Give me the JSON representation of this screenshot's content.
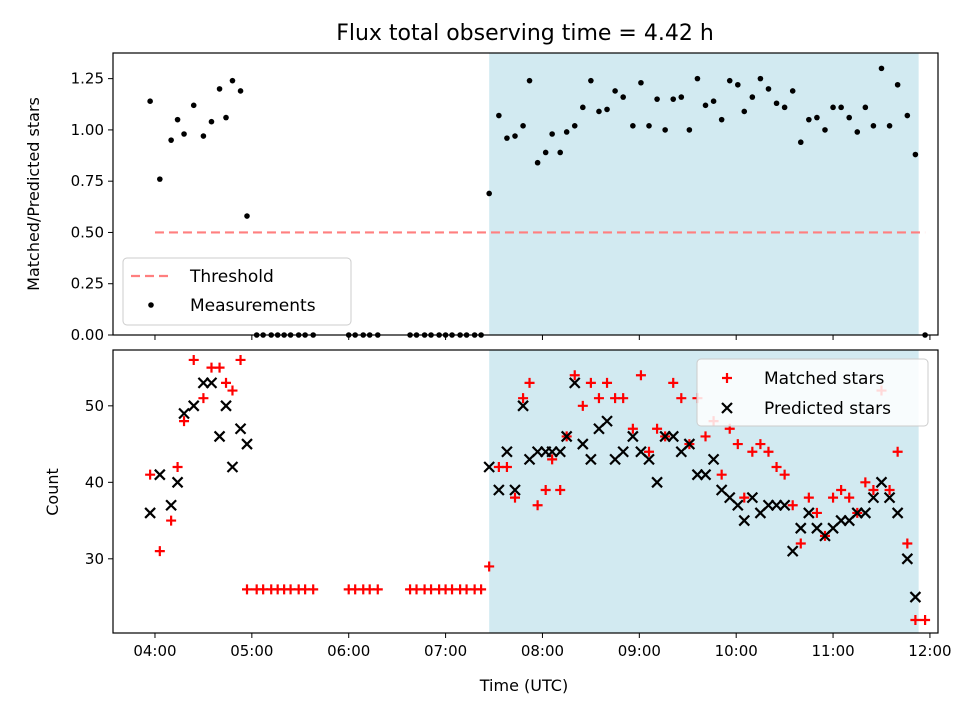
{
  "chart_data": [
    {
      "type": "scatter",
      "title": "Flux total observing time = 4.42 h",
      "xlabel": "",
      "ylabel": "Matched/Predicted stars",
      "ylim": [
        0,
        1.375
      ],
      "yticks": [
        "0.00",
        "0.25",
        "0.50",
        "0.75",
        "1.00",
        "1.25"
      ],
      "yticks_values": [
        0,
        0.25,
        0.5,
        0.75,
        1.0,
        1.25
      ],
      "shaded_span": [
        "07:27",
        "11:53"
      ],
      "threshold": {
        "name": "Threshold",
        "value": 0.5,
        "x_start": "04:00",
        "x_end": "11:57",
        "color": "#ff7f7f"
      },
      "legend": {
        "position": "lower-left",
        "entries": [
          "Threshold",
          "Measurements"
        ]
      },
      "series": [
        {
          "name": "Measurements",
          "color": "#000000",
          "marker": "dot",
          "points": [
            [
              "03:57",
              1.14
            ],
            [
              "04:03",
              0.76
            ],
            [
              "04:10",
              0.95
            ],
            [
              "04:14",
              1.05
            ],
            [
              "04:18",
              0.98
            ],
            [
              "04:24",
              1.12
            ],
            [
              "04:30",
              0.97
            ],
            [
              "04:35",
              1.04
            ],
            [
              "04:40",
              1.2
            ],
            [
              "04:44",
              1.06
            ],
            [
              "04:48",
              1.24
            ],
            [
              "04:53",
              1.19
            ],
            [
              "04:57",
              0.58
            ],
            [
              "05:03",
              0
            ],
            [
              "05:07",
              0
            ],
            [
              "05:12",
              0
            ],
            [
              "05:16",
              0
            ],
            [
              "05:20",
              0
            ],
            [
              "05:24",
              0
            ],
            [
              "05:29",
              0
            ],
            [
              "05:33",
              0
            ],
            [
              "05:38",
              0
            ],
            [
              "06:00",
              0
            ],
            [
              "06:04",
              0
            ],
            [
              "06:09",
              0
            ],
            [
              "06:13",
              0
            ],
            [
              "06:18",
              0
            ],
            [
              "06:38",
              0
            ],
            [
              "06:42",
              0
            ],
            [
              "06:47",
              0
            ],
            [
              "06:51",
              0
            ],
            [
              "06:56",
              0
            ],
            [
              "07:00",
              0
            ],
            [
              "07:04",
              0
            ],
            [
              "07:09",
              0
            ],
            [
              "07:13",
              0
            ],
            [
              "07:18",
              0
            ],
            [
              "07:22",
              0
            ],
            [
              "07:27",
              0.69
            ],
            [
              "07:33",
              1.07
            ],
            [
              "07:38",
              0.96
            ],
            [
              "07:43",
              0.97
            ],
            [
              "07:48",
              1.02
            ],
            [
              "07:52",
              1.24
            ],
            [
              "07:57",
              0.84
            ],
            [
              "08:02",
              0.89
            ],
            [
              "08:06",
              0.98
            ],
            [
              "08:11",
              0.89
            ],
            [
              "08:15",
              0.99
            ],
            [
              "08:20",
              1.02
            ],
            [
              "08:25",
              1.11
            ],
            [
              "08:30",
              1.24
            ],
            [
              "08:35",
              1.09
            ],
            [
              "08:40",
              1.1
            ],
            [
              "08:45",
              1.19
            ],
            [
              "08:50",
              1.16
            ],
            [
              "08:56",
              1.02
            ],
            [
              "09:01",
              1.23
            ],
            [
              "09:06",
              1.02
            ],
            [
              "09:11",
              1.15
            ],
            [
              "09:16",
              1.0
            ],
            [
              "09:21",
              1.15
            ],
            [
              "09:26",
              1.16
            ],
            [
              "09:31",
              1.0
            ],
            [
              "09:36",
              1.25
            ],
            [
              "09:41",
              1.12
            ],
            [
              "09:46",
              1.14
            ],
            [
              "09:51",
              1.05
            ],
            [
              "09:56",
              1.24
            ],
            [
              "10:01",
              1.22
            ],
            [
              "10:05",
              1.09
            ],
            [
              "10:10",
              1.16
            ],
            [
              "10:15",
              1.25
            ],
            [
              "10:20",
              1.2
            ],
            [
              "10:25",
              1.13
            ],
            [
              "10:30",
              1.11
            ],
            [
              "10:35",
              1.19
            ],
            [
              "10:40",
              0.94
            ],
            [
              "10:45",
              1.05
            ],
            [
              "10:50",
              1.06
            ],
            [
              "10:55",
              1.0
            ],
            [
              "11:00",
              1.11
            ],
            [
              "11:05",
              1.11
            ],
            [
              "11:10",
              1.06
            ],
            [
              "11:15",
              0.99
            ],
            [
              "11:20",
              1.11
            ],
            [
              "11:25",
              1.02
            ],
            [
              "11:30",
              1.3
            ],
            [
              "11:35",
              1.02
            ],
            [
              "11:40",
              1.22
            ],
            [
              "11:46",
              1.07
            ],
            [
              "11:51",
              0.88
            ],
            [
              "11:57",
              0
            ]
          ]
        }
      ]
    },
    {
      "type": "scatter",
      "title": "",
      "xlabel": "Time (UTC)",
      "ylabel": "Count",
      "ylim": [
        20.3,
        57.3
      ],
      "yticks": [
        "30",
        "40",
        "50"
      ],
      "yticks_values": [
        30,
        40,
        50
      ],
      "xlim": [
        "03:34",
        "12:05"
      ],
      "xticks": [
        "04:00",
        "05:00",
        "06:00",
        "07:00",
        "08:00",
        "09:00",
        "10:00",
        "11:00",
        "12:00"
      ],
      "shaded_span": [
        "07:27",
        "11:53"
      ],
      "legend": {
        "position": "top-right",
        "entries": [
          "Matched stars",
          "Predicted stars"
        ]
      },
      "series": [
        {
          "name": "Matched stars",
          "color": "#ff0000",
          "marker": "plus",
          "points": [
            [
              "03:57",
              41
            ],
            [
              "04:03",
              31
            ],
            [
              "04:10",
              35
            ],
            [
              "04:14",
              42
            ],
            [
              "04:18",
              48
            ],
            [
              "04:24",
              56
            ],
            [
              "04:30",
              51
            ],
            [
              "04:35",
              55
            ],
            [
              "04:40",
              55
            ],
            [
              "04:44",
              53
            ],
            [
              "04:48",
              52
            ],
            [
              "04:53",
              56
            ],
            [
              "04:57",
              26
            ],
            [
              "05:03",
              26
            ],
            [
              "05:07",
              26
            ],
            [
              "05:12",
              26
            ],
            [
              "05:16",
              26
            ],
            [
              "05:20",
              26
            ],
            [
              "05:24",
              26
            ],
            [
              "05:29",
              26
            ],
            [
              "05:33",
              26
            ],
            [
              "05:38",
              26
            ],
            [
              "06:00",
              26
            ],
            [
              "06:04",
              26
            ],
            [
              "06:09",
              26
            ],
            [
              "06:13",
              26
            ],
            [
              "06:18",
              26
            ],
            [
              "06:38",
              26
            ],
            [
              "06:42",
              26
            ],
            [
              "06:47",
              26
            ],
            [
              "06:51",
              26
            ],
            [
              "06:56",
              26
            ],
            [
              "07:00",
              26
            ],
            [
              "07:04",
              26
            ],
            [
              "07:09",
              26
            ],
            [
              "07:13",
              26
            ],
            [
              "07:18",
              26
            ],
            [
              "07:22",
              26
            ],
            [
              "07:27",
              29
            ],
            [
              "07:33",
              42
            ],
            [
              "07:38",
              42
            ],
            [
              "07:43",
              38
            ],
            [
              "07:48",
              51
            ],
            [
              "07:52",
              53
            ],
            [
              "07:57",
              37
            ],
            [
              "08:02",
              39
            ],
            [
              "08:06",
              43
            ],
            [
              "08:11",
              39
            ],
            [
              "08:15",
              46
            ],
            [
              "08:20",
              54
            ],
            [
              "08:25",
              50
            ],
            [
              "08:30",
              53
            ],
            [
              "08:35",
              51
            ],
            [
              "08:40",
              53
            ],
            [
              "08:45",
              51
            ],
            [
              "08:50",
              51
            ],
            [
              "08:56",
              47
            ],
            [
              "09:01",
              54
            ],
            [
              "09:06",
              44
            ],
            [
              "09:11",
              47
            ],
            [
              "09:16",
              46
            ],
            [
              "09:21",
              53
            ],
            [
              "09:26",
              51
            ],
            [
              "09:31",
              45
            ],
            [
              "09:36",
              51
            ],
            [
              "09:41",
              46
            ],
            [
              "09:46",
              48
            ],
            [
              "09:51",
              41
            ],
            [
              "09:56",
              47
            ],
            [
              "10:01",
              45
            ],
            [
              "10:05",
              38
            ],
            [
              "10:10",
              44
            ],
            [
              "10:15",
              45
            ],
            [
              "10:20",
              44
            ],
            [
              "10:25",
              42
            ],
            [
              "10:30",
              41
            ],
            [
              "10:35",
              37
            ],
            [
              "10:40",
              32
            ],
            [
              "10:45",
              38
            ],
            [
              "10:50",
              36
            ],
            [
              "10:55",
              33
            ],
            [
              "11:00",
              38
            ],
            [
              "11:05",
              39
            ],
            [
              "11:10",
              38
            ],
            [
              "11:15",
              36
            ],
            [
              "11:20",
              40
            ],
            [
              "11:25",
              39
            ],
            [
              "11:30",
              52
            ],
            [
              "11:35",
              39
            ],
            [
              "11:40",
              44
            ],
            [
              "11:46",
              32
            ],
            [
              "11:51",
              22
            ],
            [
              "11:57",
              22
            ]
          ]
        },
        {
          "name": "Predicted stars",
          "color": "#000000",
          "marker": "x",
          "points": [
            [
              "03:57",
              36
            ],
            [
              "04:03",
              41
            ],
            [
              "04:10",
              37
            ],
            [
              "04:14",
              40
            ],
            [
              "04:18",
              49
            ],
            [
              "04:24",
              50
            ],
            [
              "04:30",
              53
            ],
            [
              "04:35",
              53
            ],
            [
              "04:40",
              46
            ],
            [
              "04:44",
              50
            ],
            [
              "04:48",
              42
            ],
            [
              "04:53",
              47
            ],
            [
              "04:57",
              45
            ],
            [
              "07:27",
              42
            ],
            [
              "07:33",
              39
            ],
            [
              "07:38",
              44
            ],
            [
              "07:43",
              39
            ],
            [
              "07:48",
              50
            ],
            [
              "07:52",
              43
            ],
            [
              "07:57",
              44
            ],
            [
              "08:02",
              44
            ],
            [
              "08:06",
              44
            ],
            [
              "08:11",
              44
            ],
            [
              "08:15",
              46
            ],
            [
              "08:20",
              53
            ],
            [
              "08:25",
              45
            ],
            [
              "08:30",
              43
            ],
            [
              "08:35",
              47
            ],
            [
              "08:40",
              48
            ],
            [
              "08:45",
              43
            ],
            [
              "08:50",
              44
            ],
            [
              "08:56",
              46
            ],
            [
              "09:01",
              44
            ],
            [
              "09:06",
              43
            ],
            [
              "09:11",
              40
            ],
            [
              "09:16",
              46
            ],
            [
              "09:21",
              46
            ],
            [
              "09:26",
              44
            ],
            [
              "09:31",
              45
            ],
            [
              "09:36",
              41
            ],
            [
              "09:41",
              41
            ],
            [
              "09:46",
              43
            ],
            [
              "09:51",
              39
            ],
            [
              "09:56",
              38
            ],
            [
              "10:01",
              37
            ],
            [
              "10:05",
              35
            ],
            [
              "10:10",
              38
            ],
            [
              "10:15",
              36
            ],
            [
              "10:20",
              37
            ],
            [
              "10:25",
              37
            ],
            [
              "10:30",
              37
            ],
            [
              "10:35",
              31
            ],
            [
              "10:40",
              34
            ],
            [
              "10:45",
              36
            ],
            [
              "10:50",
              34
            ],
            [
              "10:55",
              33
            ],
            [
              "11:00",
              34
            ],
            [
              "11:05",
              35
            ],
            [
              "11:10",
              35
            ],
            [
              "11:15",
              36
            ],
            [
              "11:20",
              36
            ],
            [
              "11:25",
              38
            ],
            [
              "11:30",
              40
            ],
            [
              "11:35",
              38
            ],
            [
              "11:40",
              36
            ],
            [
              "11:46",
              30
            ],
            [
              "11:51",
              25
            ]
          ]
        }
      ]
    }
  ],
  "colors": {
    "shade": "#add8e6",
    "shade_alpha": 0.55
  }
}
